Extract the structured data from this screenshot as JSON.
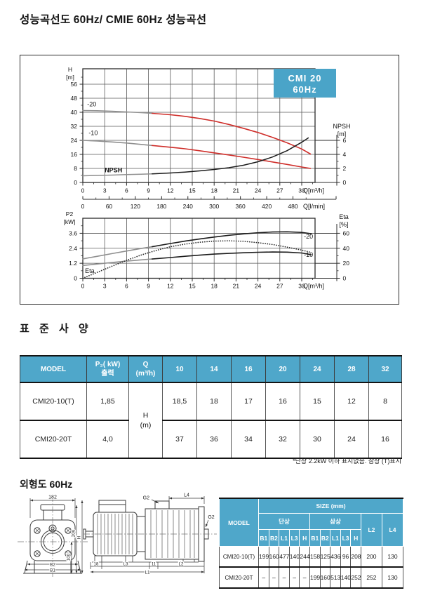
{
  "page": {
    "title": "성능곡선도 60Hz/ CMIE 60Hz 성능곡선"
  },
  "chart": {
    "badge": {
      "line1": "CMI 20",
      "line2": "60Hz",
      "bg": "#4aa4c8"
    },
    "upper_axes": {
      "y1_title_1": "H",
      "y1_title_2": "[m]",
      "y2_title_1": "NPSH",
      "y2_title_2": "[m]",
      "x_title": "Q[m³/h]",
      "x2_title": "Q[l/min]"
    },
    "lower_axes": {
      "y1_title_1": "P2",
      "y1_title_2": "[kW]",
      "y2_title_1": "Eta",
      "y2_title_2": "[%]",
      "x_title": "Q[m³/h]"
    },
    "colors": {
      "red": "#cf2e2a",
      "black": "#1c1c1c",
      "gray": "#8f8f8f",
      "grid": "#595959",
      "frame": "#2b2b2b"
    }
  },
  "chart_data": [
    {
      "id": "hq-curves",
      "type": "line",
      "title": "CMI 20 60Hz head curves",
      "xlabel": "Q[m³/h]",
      "x2label": "Q[l/min]",
      "ylabel": "H [m]",
      "y2label": "NPSH [m]",
      "xlim": [
        0,
        31.8
      ],
      "ylim": [
        0,
        64.8
      ],
      "y2lim": [
        0,
        8.1
      ],
      "xticks": [
        0,
        3,
        6,
        9,
        12,
        15,
        18,
        21,
        24,
        27,
        30
      ],
      "yticks": [
        0,
        8,
        16,
        24,
        32,
        40,
        48,
        56
      ],
      "x2ticks": [
        0,
        60,
        120,
        180,
        240,
        300,
        360,
        420,
        480
      ],
      "y2ticks": [
        0,
        2,
        4,
        6
      ],
      "grid": true,
      "series": [
        {
          "name": "-20",
          "axis": "left",
          "split_x": 9.5,
          "color_start": "#8f8f8f",
          "color_main": "#cf2e2a",
          "label_at": [
            0.6,
            43.5
          ],
          "points": [
            [
              0,
              41
            ],
            [
              2,
              40.9
            ],
            [
              4,
              40.6
            ],
            [
              6,
              40.2
            ],
            [
              8,
              39.8
            ],
            [
              9.5,
              39.4
            ],
            [
              12,
              38.6
            ],
            [
              14,
              37.7
            ],
            [
              16,
              36.5
            ],
            [
              18,
              35.0
            ],
            [
              20,
              33.1
            ],
            [
              22,
              30.9
            ],
            [
              24,
              28.5
            ],
            [
              26,
              25.7
            ],
            [
              28,
              22.6
            ],
            [
              30,
              19.1
            ],
            [
              31.2,
              16.2
            ]
          ]
        },
        {
          "name": "-10",
          "axis": "left",
          "split_x": 9.5,
          "color_start": "#8f8f8f",
          "color_main": "#cf2e2a",
          "label_at": [
            0.8,
            27.0
          ],
          "points": [
            [
              0,
              24
            ],
            [
              2,
              23.6
            ],
            [
              4,
              23.1
            ],
            [
              6,
              22.5
            ],
            [
              8,
              21.7
            ],
            [
              9.5,
              21.1
            ],
            [
              12,
              20.1
            ],
            [
              14,
              19.2
            ],
            [
              16,
              18.1
            ],
            [
              18,
              16.9
            ],
            [
              20,
              15.7
            ],
            [
              22,
              14.4
            ],
            [
              24,
              13.1
            ],
            [
              26,
              11.7
            ],
            [
              28,
              10.3
            ],
            [
              30,
              8.8
            ],
            [
              31.2,
              8.0
            ]
          ]
        },
        {
          "name": "NPSH",
          "axis": "right",
          "split_x": 9.5,
          "color_start": "#8f8f8f",
          "color_main": "#1c1c1c",
          "width": 1.5,
          "label_bold": true,
          "label_at": [
            3.0,
            1.45
          ],
          "points": [
            [
              0,
              0.95
            ],
            [
              2,
              1.0
            ],
            [
              4,
              1.05
            ],
            [
              6,
              1.13
            ],
            [
              8,
              1.18
            ],
            [
              9.5,
              1.23
            ],
            [
              12,
              1.35
            ],
            [
              14,
              1.48
            ],
            [
              16,
              1.65
            ],
            [
              18,
              1.85
            ],
            [
              20,
              2.1
            ],
            [
              22,
              2.45
            ],
            [
              24,
              2.95
            ],
            [
              26,
              3.63
            ],
            [
              28,
              4.53
            ],
            [
              30,
              5.73
            ],
            [
              30.9,
              6.35
            ]
          ]
        }
      ]
    },
    {
      "id": "p2-eta-curves",
      "type": "line",
      "title": "CMI 20 60Hz power and efficiency curves",
      "xlabel": "Q[m³/h]",
      "ylabel": "P2 [kW]",
      "y2label": "Eta [%]",
      "xlim": [
        0,
        31.8
      ],
      "ylim": [
        0,
        4.8
      ],
      "y2lim": [
        0,
        80
      ],
      "xticks": [
        0,
        3,
        6,
        9,
        12,
        15,
        18,
        21,
        24,
        27,
        30
      ],
      "yticks": [
        0,
        1.2,
        2.4,
        3.6
      ],
      "y2ticks": [
        0,
        20,
        40,
        60
      ],
      "grid": true,
      "series": [
        {
          "name": "-20",
          "axis": "left",
          "split_x": 9.5,
          "color_start": "#8f8f8f",
          "color_main": "#1c1c1c",
          "label_at": [
            30.3,
            3.18
          ],
          "points": [
            [
              0,
              1.55
            ],
            [
              2,
              1.76
            ],
            [
              4,
              1.97
            ],
            [
              6,
              2.18
            ],
            [
              8,
              2.38
            ],
            [
              9.5,
              2.52
            ],
            [
              12,
              2.78
            ],
            [
              14,
              2.97
            ],
            [
              16,
              3.14
            ],
            [
              18,
              3.3
            ],
            [
              20,
              3.44
            ],
            [
              22,
              3.55
            ],
            [
              24,
              3.64
            ],
            [
              26,
              3.7
            ],
            [
              28,
              3.72
            ],
            [
              30,
              3.67
            ],
            [
              31.3,
              3.56
            ]
          ]
        },
        {
          "name": "-10",
          "axis": "left",
          "split_x": 9.5,
          "color_start": "#8f8f8f",
          "color_main": "#1c1c1c",
          "label_at": [
            30.3,
            1.72
          ],
          "points": [
            [
              0,
              1.02
            ],
            [
              2,
              1.14
            ],
            [
              4,
              1.26
            ],
            [
              6,
              1.37
            ],
            [
              8,
              1.47
            ],
            [
              9.5,
              1.54
            ],
            [
              12,
              1.66
            ],
            [
              14,
              1.76
            ],
            [
              16,
              1.85
            ],
            [
              18,
              1.93
            ],
            [
              20,
              1.99
            ],
            [
              22,
              2.04
            ],
            [
              24,
              2.08
            ],
            [
              26,
              2.1
            ],
            [
              28,
              2.09
            ],
            [
              30,
              2.02
            ],
            [
              31.3,
              1.88
            ]
          ]
        },
        {
          "name": "Eta",
          "axis": "right",
          "dotted": true,
          "color_main": "#2a2a2a",
          "width": 1.7,
          "label_at": [
            0.3,
            7.0
          ],
          "points": [
            [
              0,
              0
            ],
            [
              2,
              8
            ],
            [
              4,
              16
            ],
            [
              6,
              24
            ],
            [
              8,
              31
            ],
            [
              10,
              37
            ],
            [
              12,
              42
            ],
            [
              14,
              45.5
            ],
            [
              16,
              48
            ],
            [
              18,
              49.5
            ],
            [
              20,
              50
            ],
            [
              22,
              49.3
            ],
            [
              24,
              47.5
            ],
            [
              26,
              45
            ],
            [
              28,
              41.5
            ],
            [
              30,
              37.5
            ],
            [
              31.3,
              34.5
            ]
          ]
        }
      ]
    }
  ],
  "spec_section": {
    "title": "표 준 사 양"
  },
  "spec_table": {
    "header_bg": "#4fa7ca",
    "headers": [
      "MODEL",
      "P₂( kW)\n출력",
      "Q\n(m³/h)",
      "10",
      "14",
      "16",
      "20",
      "24",
      "28",
      "32"
    ],
    "h_cell": "H\n(m)",
    "rows": [
      {
        "model": "CMI20-10(T)",
        "p2": "1,85",
        "values": [
          "18,5",
          "18",
          "17",
          "16",
          "15",
          "12",
          "8"
        ]
      },
      {
        "model": "CMI20-20T",
        "p2": "4,0",
        "values": [
          "37",
          "36",
          "34",
          "32",
          "30",
          "24",
          "16"
        ]
      }
    ],
    "footnote": "*단상 2.2kW 이하 표시없음. 삼상 (T)표시"
  },
  "outline_section": {
    "title": "외형도 60Hz"
  },
  "drawing": {
    "dim_182": "182",
    "dim_206": "206",
    "dim_h": "H",
    "dim_100": "100",
    "dim_b2": "B2",
    "dim_b1": "B1",
    "dim_g2_top": "G2",
    "dim_l4": "L4",
    "dim_g2_side": "G2",
    "dim_18": "18",
    "dim_l3": "L3",
    "dim_11": "11",
    "dim_l2": "L2",
    "dim_l1": "L1"
  },
  "size_table": {
    "header_bg": "#4fa7ca",
    "title": "SIZE (mm)",
    "model_header": "MODEL",
    "phase_headers": [
      "단상",
      "삼상"
    ],
    "sub_headers": [
      "B1",
      "B2",
      "L1",
      "L3",
      "H"
    ],
    "extra_headers": [
      "L2",
      "L4"
    ],
    "rows": [
      {
        "model": "CMI20-10(T)",
        "single": [
          "199",
          "160",
          "477",
          "140",
          "244"
        ],
        "three": [
          "158",
          "125",
          "436",
          "96",
          "208"
        ],
        "l2": "200",
        "l4": "130"
      },
      {
        "model": "CMI20-20T",
        "single": [
          "–",
          "–",
          "–",
          "–",
          "–"
        ],
        "three": [
          "199",
          "160",
          "513",
          "140",
          "252"
        ],
        "l2": "252",
        "l4": "130"
      }
    ]
  }
}
